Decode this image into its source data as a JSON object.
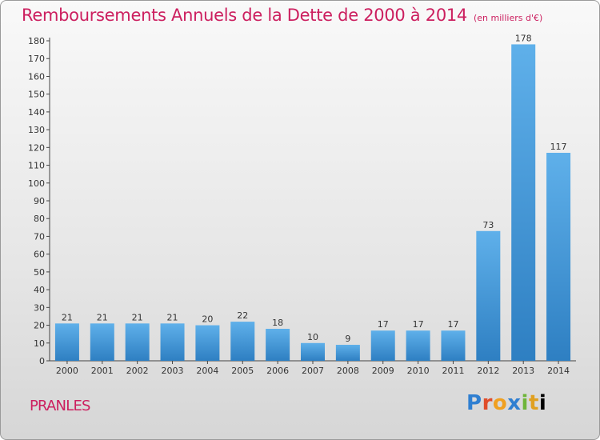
{
  "header": {
    "title": "Remboursements Annuels de la Dette de 2000 à 2014",
    "unit": "(en milliers d'€)"
  },
  "footer": {
    "commune": "PRANLES",
    "logo": [
      "P",
      "r",
      "o",
      "x",
      "i",
      "t",
      "i"
    ]
  },
  "colors": {
    "accent": "#cc1f5f",
    "bar_top": "#5fb0ea",
    "bar_bottom": "#2e7fc2"
  },
  "chart_data": {
    "type": "bar",
    "categories": [
      "2000",
      "2001",
      "2002",
      "2003",
      "2004",
      "2005",
      "2006",
      "2007",
      "2008",
      "2009",
      "2010",
      "2011",
      "2012",
      "2013",
      "2014"
    ],
    "values": [
      21,
      21,
      21,
      21,
      20,
      22,
      18,
      10,
      9,
      17,
      17,
      17,
      73,
      178,
      117
    ],
    "title": "Remboursements Annuels de la Dette de 2000 à 2014",
    "xlabel": "",
    "ylabel": "",
    "ylim": [
      0,
      180
    ],
    "yticks": [
      0,
      10,
      20,
      30,
      40,
      50,
      60,
      70,
      80,
      90,
      100,
      110,
      120,
      130,
      140,
      150,
      160,
      170,
      180
    ],
    "grid": false,
    "legend": "none"
  }
}
